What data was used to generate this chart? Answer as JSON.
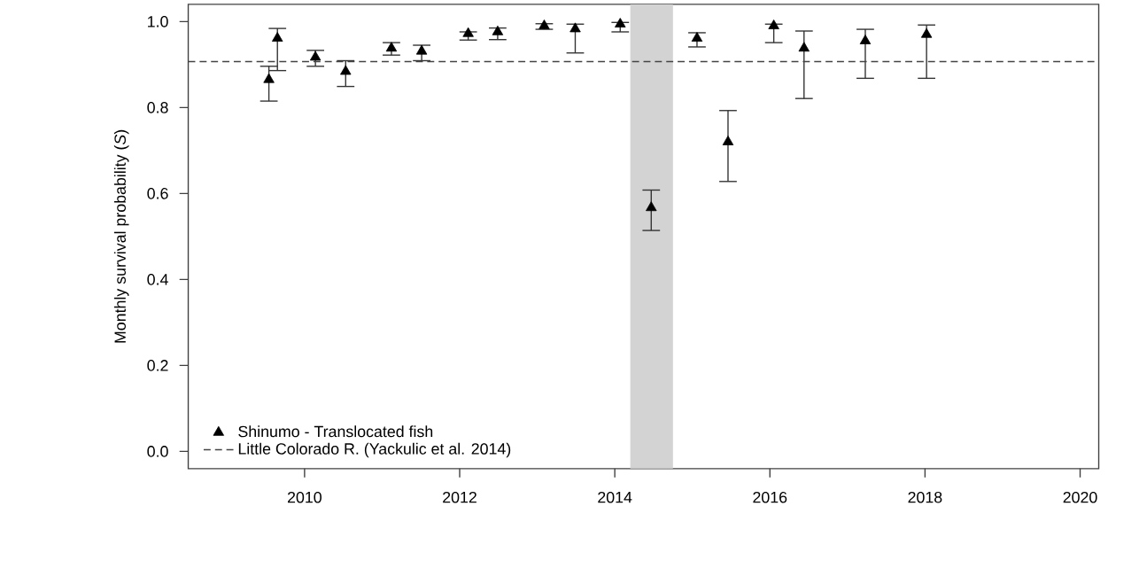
{
  "chart_data": {
    "type": "scatter",
    "ylabel": "Monthly survival probability (*S*)",
    "x": [
      2009.54,
      2009.65,
      2010.14,
      2010.53,
      2011.12,
      2011.51,
      2012.11,
      2012.49,
      2013.09,
      2013.49,
      2014.07,
      2014.47,
      2015.06,
      2015.46,
      2016.05,
      2016.44,
      2017.23,
      2018.02
    ],
    "series": [
      {
        "name": "Shinumo - Translocated fish",
        "color": "#000000",
        "marker": "triangle",
        "values": [
          0.865,
          0.961,
          0.917,
          0.884,
          0.938,
          0.931,
          0.972,
          0.976,
          0.99,
          0.983,
          0.994,
          0.567,
          0.961,
          0.72,
          0.99,
          0.938,
          0.955,
          0.97
        ],
        "errors": [
          [
            0.815,
            0.896
          ],
          [
            0.886,
            0.984
          ],
          [
            0.896,
            0.933
          ],
          [
            0.849,
            0.909
          ],
          [
            0.922,
            0.951
          ],
          [
            0.909,
            0.945
          ],
          [
            0.957,
            0.976
          ],
          [
            0.958,
            0.985
          ],
          [
            0.982,
            0.995
          ],
          [
            0.927,
            0.994
          ],
          [
            0.976,
            0.998
          ],
          [
            0.514,
            0.608
          ],
          [
            0.941,
            0.974
          ],
          [
            0.628,
            0.793
          ],
          [
            0.951,
            0.994
          ],
          [
            0.821,
            0.978
          ],
          [
            0.868,
            0.982
          ],
          [
            0.868,
            0.992
          ]
        ]
      }
    ],
    "xlim": [
      2008.5,
      2020.24
    ],
    "ylim": [
      -0.04,
      1.04
    ],
    "xticks": [
      2010,
      2012,
      2014,
      2016,
      2018,
      2020
    ],
    "yticks": [
      {
        "value": 0,
        "label": "0.0"
      },
      0.2,
      0.4,
      0.6,
      0.8,
      {
        "value": 1,
        "label": "1.0"
      }
    ],
    "ref_lines": [
      {
        "axis": "y",
        "value": 0.907,
        "label": "Little Colorado R. (Yackulic et al. 2014)",
        "color": "#444444",
        "line_style": "dashed"
      }
    ],
    "bands": [
      {
        "axis": "x",
        "from": 2014.2,
        "to": 2014.75,
        "color": "#d3d3d3"
      }
    ],
    "legend": "bottom left",
    "grid": false
  }
}
